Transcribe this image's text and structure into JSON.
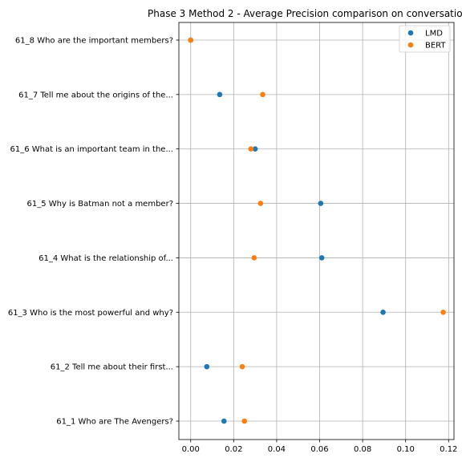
{
  "chart_data": {
    "type": "scatter",
    "title": "Phase 3 Method 2 - Average Precision comparison on conversatio",
    "xlabel": "",
    "ylabel": "",
    "xlim": [
      -0.0055,
      0.1225
    ],
    "xticks": [
      0.0,
      0.02,
      0.04,
      0.06,
      0.08,
      0.1,
      0.12
    ],
    "xtick_labels": [
      "0.00",
      "0.02",
      "0.04",
      "0.06",
      "0.08",
      "0.10",
      "0.12"
    ],
    "grid": true,
    "legend_position": "top-right",
    "categories": [
      "61_1 Who are The Avengers?",
      "61_2 Tell me about their first...",
      "61_3 Who is the most powerful and why?",
      "61_4 What is the relationship of...",
      "61_5 Why is Batman not a member?",
      "61_6 What is an important team in the...",
      "61_7 Tell me about the origins of the...",
      "61_8 Who are the important members?"
    ],
    "series": [
      {
        "name": "LMD",
        "color": "#1f77b4",
        "values": [
          0.0155,
          0.0075,
          0.0895,
          0.061,
          0.0605,
          0.03,
          0.0135,
          0.0
        ]
      },
      {
        "name": "BERT",
        "color": "#ff7f0e",
        "values": [
          0.025,
          0.024,
          0.1175,
          0.0295,
          0.0325,
          0.028,
          0.0335,
          0.0
        ]
      }
    ]
  }
}
